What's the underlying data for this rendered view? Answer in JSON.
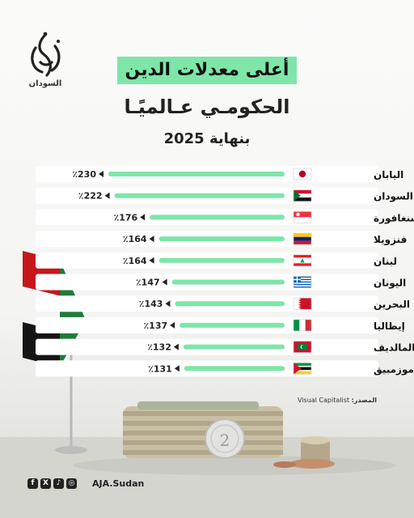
{
  "brand": {
    "name": "السودان",
    "handle": "AJA.Sudan"
  },
  "title": {
    "line1": "أعلى معدلات الدين",
    "line2": "الحكومـي عـالميًـا",
    "line3": "بنهاية 2025"
  },
  "source": {
    "label": "المصدر:",
    "value": "Visual Capitalist"
  },
  "social_icons": [
    "facebook-icon",
    "x-icon",
    "tiktok-icon",
    "instagram-icon"
  ],
  "colors": {
    "bar": "#7ee6a8",
    "highlight": "#7ee6a8",
    "track": "#ffffff"
  },
  "chart_data": {
    "type": "bar",
    "orientation": "horizontal",
    "title": "أعلى معدلات الدين الحكومـي عـالميًـا بنهاية 2025",
    "unit": "%",
    "categories": [
      "اليابان",
      "السودان",
      "سنغافورة",
      "فنزويلا",
      "لبنان",
      "اليونان",
      "البحرين",
      "إيطاليا",
      "المالديف",
      "موزمبيق"
    ],
    "values": [
      230,
      222,
      176,
      164,
      164,
      147,
      143,
      137,
      132,
      131
    ],
    "value_labels": [
      "٪230",
      "٪222",
      "٪176",
      "٪164",
      "٪164",
      "٪147",
      "٪143",
      "٪137",
      "٪132",
      "٪131"
    ],
    "flags": [
      "japan",
      "sudan",
      "singapore",
      "venezuela",
      "lebanon",
      "greece",
      "bahrain",
      "italy",
      "maldives",
      "mozambique"
    ],
    "xlim": [
      0,
      240
    ]
  }
}
